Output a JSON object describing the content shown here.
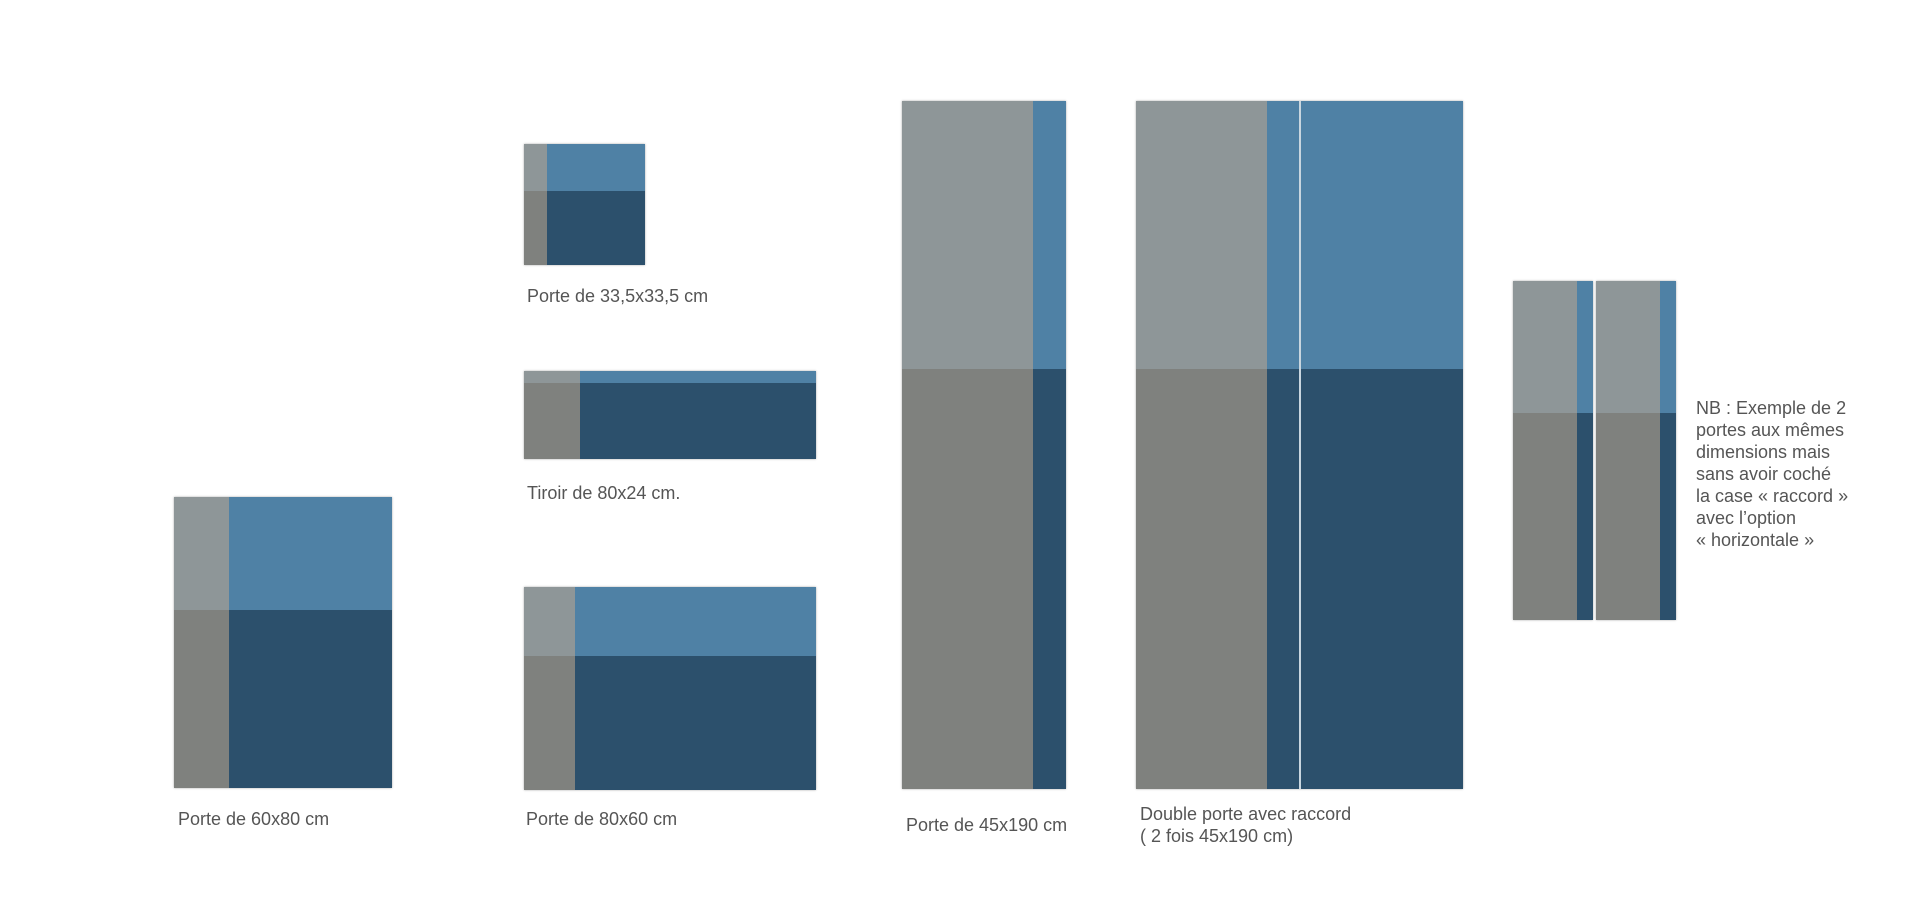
{
  "colors": {
    "grey_light": "#8e9698",
    "grey_dark": "#7f817e",
    "blue_light": "#4f81a5",
    "blue_dark": "#2c506c",
    "caption_text": "#555555"
  },
  "captions": {
    "porte_60x80": "Porte de 60x80 cm",
    "porte_33x33": "Porte de 33,5x33,5 cm",
    "tiroir_80x24": "Tiroir de 80x24 cm.",
    "porte_80x60": "Porte de 80x60 cm",
    "porte_45x190": "Porte de 45x190 cm",
    "double_porte_line1": "Double porte avec raccord",
    "double_porte_line2": "( 2 fois 45x190 cm)"
  },
  "note": {
    "lines": [
      "NB : Exemple de 2",
      "portes aux mêmes",
      "dimensions mais",
      "sans avoir coché",
      "la case « raccord »",
      "avec l’option",
      "« horizontale »"
    ]
  }
}
